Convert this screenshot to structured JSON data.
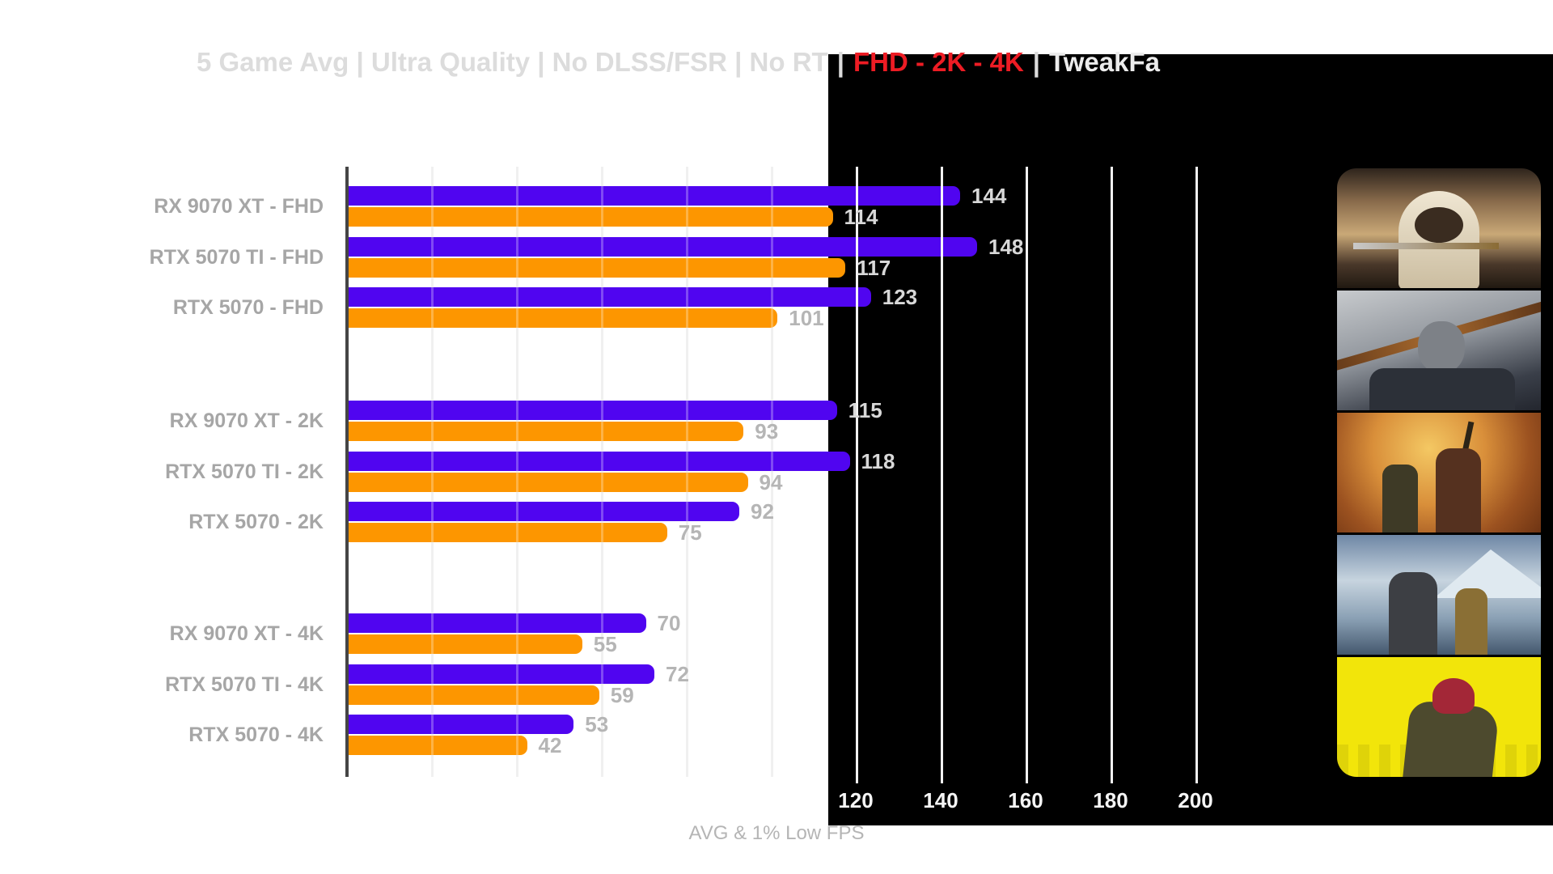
{
  "title": {
    "settings": "5 Game Avg | Ultra Quality | No DLSS/FSR | No RT",
    "separator": "|",
    "resolutions": "FHD - 2K - 4K",
    "brand": "TweakFa"
  },
  "colors": {
    "avg_bar": "#5005F0",
    "low_bar": "#FD9600",
    "title_red": "#ED1C24",
    "title_gray": "#DCDCDC",
    "dark_zone": "#000000",
    "category_label": "#A6A6A6",
    "value_on_white": "#B5B5B5",
    "value_on_black": "#D8D8D8"
  },
  "chart_data": {
    "type": "bar",
    "orientation": "horizontal",
    "title": "5 Game Avg | Ultra Quality | No DLSS/FSR | No RT | FHD - 2K - 4K | TweakFa",
    "xlabel": "AVG & 1% Low FPS",
    "axis_ticks": [
      120,
      140,
      160,
      180,
      200
    ],
    "minor_gridlines": [
      20,
      40,
      60,
      80,
      100
    ],
    "xlim": [
      0,
      200
    ],
    "grid": true,
    "series": [
      {
        "name": "AVG FPS",
        "color": "#5005F0"
      },
      {
        "name": "1% Low FPS",
        "color": "#FD9600"
      }
    ],
    "groups": [
      {
        "resolution": "FHD",
        "rows": [
          {
            "label": "RX 9070 XT - FHD",
            "avg": 144,
            "low": 114
          },
          {
            "label": "RTX 5070 TI - FHD",
            "avg": 148,
            "low": 117
          },
          {
            "label": "RTX 5070 - FHD",
            "avg": 123,
            "low": 101
          }
        ]
      },
      {
        "resolution": "2K",
        "rows": [
          {
            "label": "RX 9070 XT - 2K",
            "avg": 115,
            "low": 93
          },
          {
            "label": "RTX 5070 TI - 2K",
            "avg": 118,
            "low": 94
          },
          {
            "label": "RTX 5070 - 2K",
            "avg": 92,
            "low": 75
          }
        ]
      },
      {
        "resolution": "4K",
        "rows": [
          {
            "label": "RX 9070 XT - 4K",
            "avg": 70,
            "low": 55
          },
          {
            "label": "RTX 5070 TI - 4K",
            "avg": 72,
            "low": 59
          },
          {
            "label": "RTX 5070 - 4K",
            "avg": 53,
            "low": 42
          }
        ]
      }
    ]
  },
  "right_panel": {
    "thumbnails": [
      {
        "name": "assassins-creed-mirage-art"
      },
      {
        "name": "black-myth-wukong-art"
      },
      {
        "name": "the-last-of-us-art"
      },
      {
        "name": "god-of-war-ragnarok-art"
      },
      {
        "name": "cyberpunk-yellow-art"
      }
    ]
  }
}
